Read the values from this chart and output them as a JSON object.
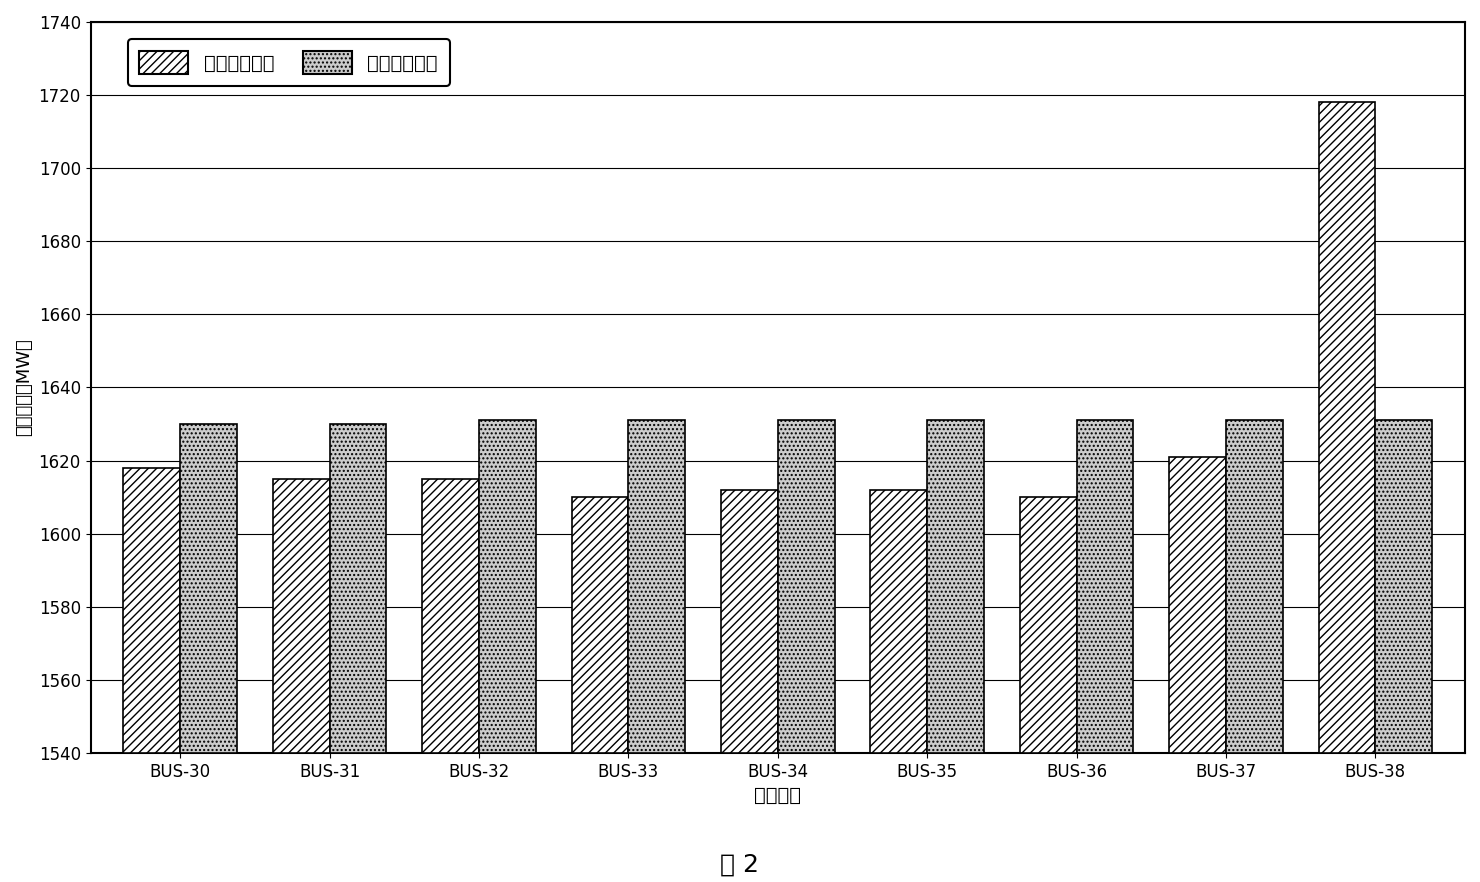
{
  "categories": [
    "BUS-30",
    "BUS-31",
    "BUS-32",
    "BUS-33",
    "BUS-34",
    "BUS-35",
    "BUS-36",
    "BUS-37",
    "BUS-38"
  ],
  "series1_values": [
    1618,
    1615,
    1615,
    1610,
    1612,
    1612,
    1610,
    1621,
    1718
  ],
  "series2_values": [
    1630,
    1630,
    1631,
    1631,
    1631,
    1631,
    1631,
    1631,
    1631
  ],
  "series1_label": "常规连续潮流",
  "series2_label": "动态连续潮流",
  "xlabel": "平衡节点",
  "ylabel": "负荷裕度（MW）",
  "ylim_min": 1540,
  "ylim_max": 1740,
  "ytick_step": 20,
  "title_below": "图 2",
  "bar_width": 0.38,
  "figure_bg": "#ffffff",
  "axes_bg": "#ffffff",
  "grid_color": "#000000",
  "bar1_hatch": "////",
  "bar2_hatch": "....",
  "bar1_facecolor": "#ffffff",
  "bar2_facecolor": "#cccccc",
  "bar_edgecolor": "#000000"
}
